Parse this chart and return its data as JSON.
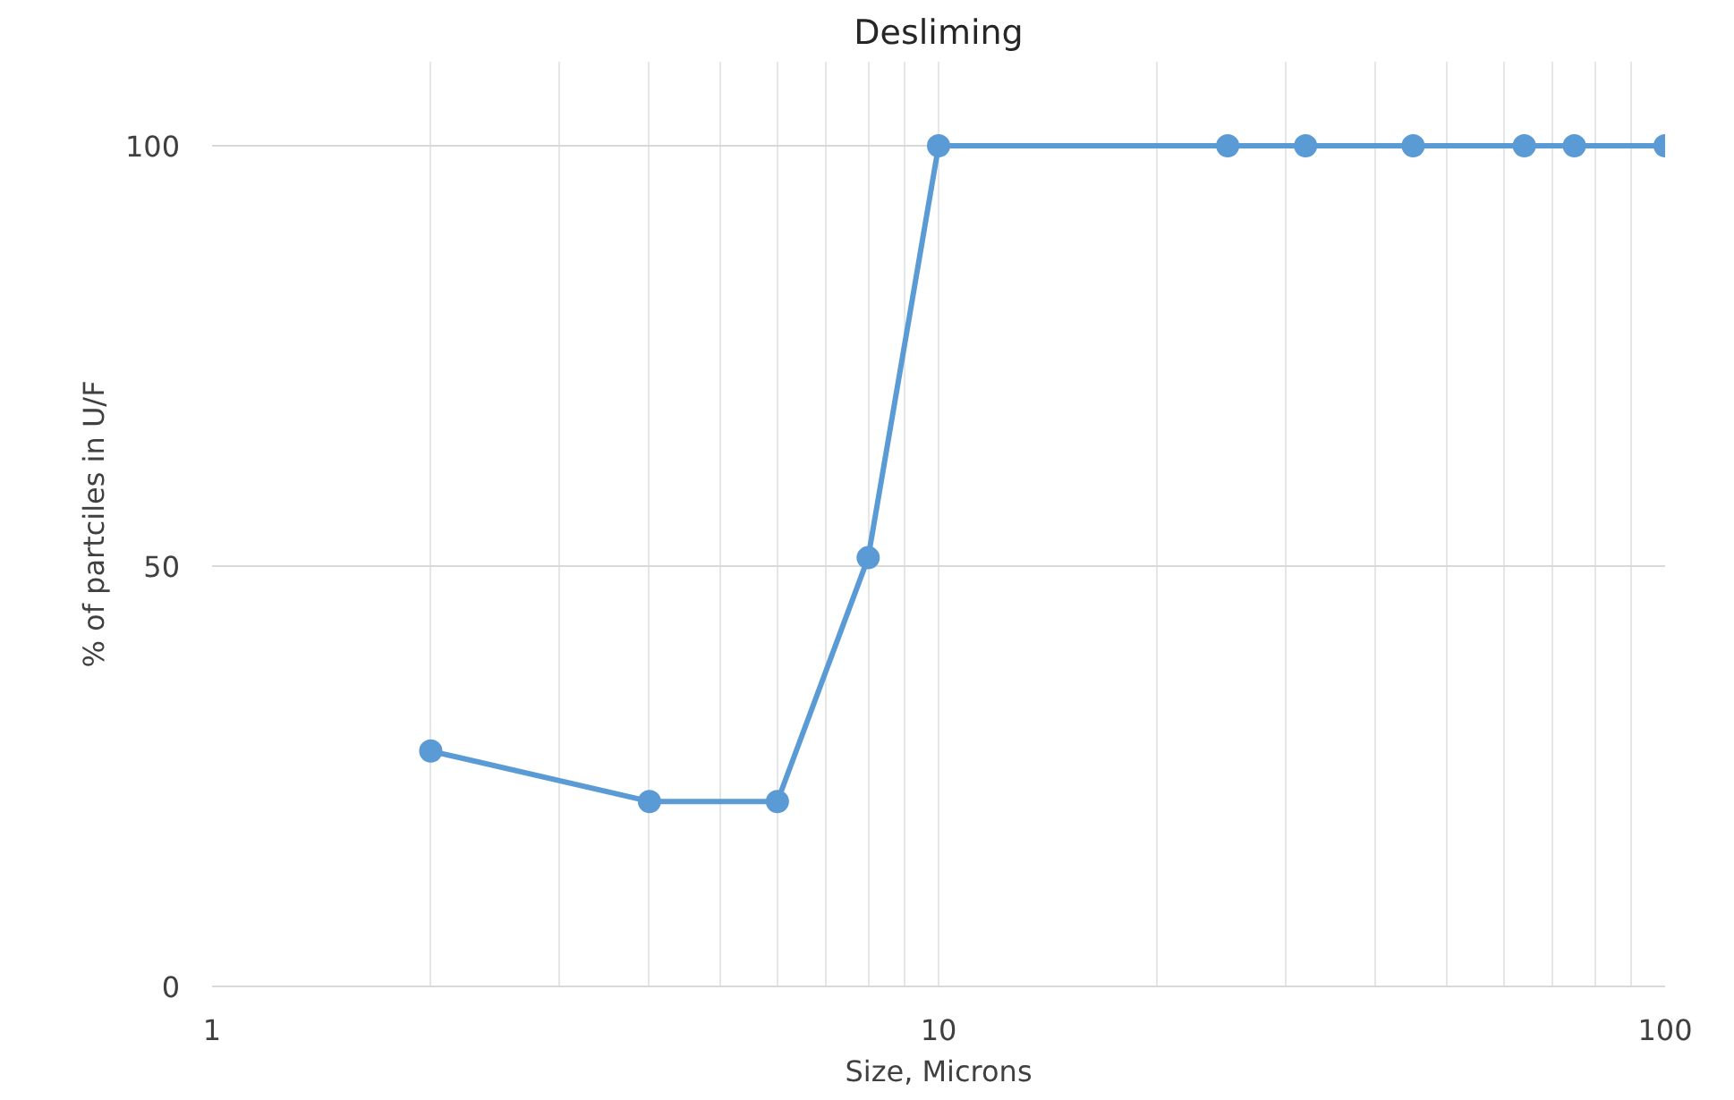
{
  "chart_data": {
    "type": "line",
    "title": "Desliming",
    "xlabel": "Size, Microns",
    "ylabel": "% of partciles in U/F",
    "x": [
      2,
      4,
      6,
      8,
      10,
      25,
      32,
      45,
      64,
      75,
      100
    ],
    "series": [
      {
        "color": "#5b9bd5",
        "values": [
          28,
          22,
          22,
          51,
          100,
          100,
          100,
          100,
          100,
          100,
          100
        ]
      }
    ],
    "log": "x",
    "xlim": [
      1,
      100
    ],
    "ylim": [
      0,
      110
    ],
    "xticks": [
      1,
      {
        "value": 2,
        "label": null
      },
      {
        "value": 3,
        "label": null
      },
      {
        "value": 4,
        "label": null
      },
      {
        "value": 5,
        "label": null
      },
      {
        "value": 6,
        "label": null
      },
      {
        "value": 7,
        "label": null
      },
      {
        "value": 8,
        "label": null
      },
      {
        "value": 9,
        "label": null
      },
      10,
      {
        "value": 20,
        "label": null
      },
      {
        "value": 30,
        "label": null
      },
      {
        "value": 40,
        "label": null
      },
      {
        "value": 50,
        "label": null
      },
      {
        "value": 60,
        "label": null
      },
      {
        "value": 70,
        "label": null
      },
      {
        "value": 80,
        "label": null
      },
      {
        "value": 90,
        "label": null
      },
      100
    ],
    "yticks": [
      0,
      50,
      100
    ],
    "grid": true,
    "marker": "circle",
    "line_style": "solid"
  }
}
